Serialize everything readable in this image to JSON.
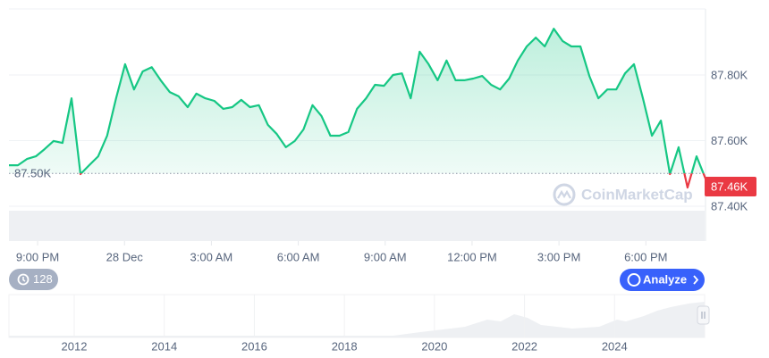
{
  "chart_data": {
    "type": "line",
    "x": [
      -0.99,
      -0.68,
      -0.37,
      -0.06,
      0.24,
      0.55,
      0.86,
      1.17,
      1.48,
      1.78,
      2.09,
      2.4,
      2.71,
      3.02,
      3.33,
      3.63,
      3.94,
      4.25,
      4.56,
      4.87,
      5.18,
      5.48,
      5.79,
      6.1,
      6.41,
      6.72,
      7.03,
      7.33,
      7.64,
      7.95,
      8.26,
      8.57,
      8.88,
      9.18,
      9.49,
      9.8,
      10.11,
      10.42,
      10.73,
      11.03,
      11.34,
      11.65,
      11.96,
      12.27,
      12.58,
      12.88,
      13.19,
      13.5,
      13.81,
      14.12,
      14.43,
      14.73,
      15.04,
      15.35,
      15.66,
      15.97,
      16.28,
      16.58,
      16.89,
      17.2,
      17.51,
      17.82,
      18.13,
      18.43,
      18.74,
      19.05,
      19.36,
      19.67,
      19.98,
      20.28,
      20.59,
      20.9,
      21.21,
      21.52,
      21.83,
      22.13,
      22.44,
      22.75,
      23.06
    ],
    "series": [
      {
        "color": "#16c784",
        "values": [
          87525,
          87525,
          87544,
          87552,
          87574,
          87599,
          87593,
          87729,
          87498,
          87525,
          87552,
          87615,
          87729,
          87833,
          87756,
          87811,
          87824,
          87784,
          87748,
          87735,
          87702,
          87743,
          87729,
          87721,
          87697,
          87702,
          87724,
          87702,
          87708,
          87648,
          87620,
          87580,
          87599,
          87634,
          87708,
          87675,
          87615,
          87615,
          87626,
          87697,
          87729,
          87770,
          87767,
          87800,
          87805,
          87729,
          87871,
          87833,
          87784,
          87844,
          87784,
          87784,
          87789,
          87797,
          87770,
          87756,
          87789,
          87844,
          87887,
          87914,
          87887,
          87941,
          87903,
          87887,
          87887,
          87797,
          87729,
          87756,
          87756,
          87805,
          87833,
          87729,
          87615,
          87661,
          87498,
          87580,
          87457,
          87552,
          87484
        ]
      }
    ],
    "below_color": "#ea3943",
    "xlim": [
      -0.99,
      23.06
    ],
    "xticks": [
      {
        "value": 0,
        "label": "9:00 PM"
      },
      {
        "value": 3,
        "label": "28 Dec"
      },
      {
        "value": 6,
        "label": "3:00 AM"
      },
      {
        "value": 9,
        "label": "6:00 AM"
      },
      {
        "value": 12,
        "label": "9:00 AM"
      },
      {
        "value": 15,
        "label": "12:00 PM"
      },
      {
        "value": 18,
        "label": "3:00 PM"
      },
      {
        "value": 21,
        "label": "6:00 PM"
      }
    ],
    "ylim": [
      87400,
      88000
    ],
    "yticks": [
      {
        "value": 87400,
        "label": "87.40K"
      },
      {
        "value": 87600,
        "label": "87.60K"
      },
      {
        "value": 87800,
        "label": "87.80K"
      }
    ],
    "reference": {
      "value": 87500,
      "label": "87.50K"
    },
    "last_price": {
      "value": 87460,
      "label": "87.46K"
    },
    "grid": true,
    "watermark": "CoinMarketCap",
    "history_button": "128",
    "analyze_button": "Analyze",
    "navigator": {
      "xlim": [
        2010.55,
        2026.0
      ],
      "xticks": [
        2012,
        2014,
        2016,
        2018,
        2020,
        2022,
        2024
      ]
    }
  }
}
